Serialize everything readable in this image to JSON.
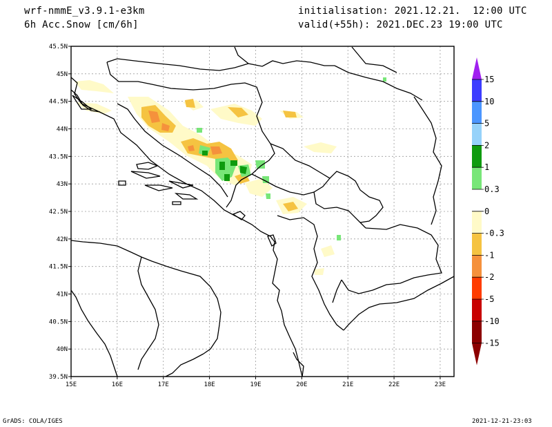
{
  "header": {
    "model": "wrf-nmmE_v3.9.1-e3km",
    "variable": "6h Acc.Snow [cm/6h]",
    "init": "initialisation: 2021.12.21.  12:00 UTC",
    "valid": "valid(+55h): 2021.DEC.23 19:00 UTC"
  },
  "footer": {
    "credit": "GrADS: COLA/IGES",
    "timestamp": "2021-12-21-23:03"
  },
  "axes": {
    "lon_labels": [
      "15E",
      "16E",
      "17E",
      "18E",
      "19E",
      "20E",
      "21E",
      "22E",
      "23E"
    ],
    "lat_labels": [
      "45.5N",
      "45N",
      "44.5N",
      "44N",
      "43.5N",
      "43N",
      "42.5N",
      "42N",
      "41.5N",
      "41N",
      "40.5N",
      "40N",
      "39.5N"
    ],
    "lon_range": [
      15,
      23.3
    ],
    "lat_range": [
      39.5,
      45.5
    ]
  },
  "colorbar": {
    "labels": [
      "15",
      "10",
      "5",
      "2",
      "1",
      "0.3",
      "0",
      "-0.3",
      "-1",
      "-2",
      "-5",
      "-10",
      "-15"
    ],
    "colors": [
      "#a020f0",
      "#3c3cff",
      "#4b96ff",
      "#96d2fa",
      "#0f9b0f",
      "#78e678",
      "#ffffff",
      "#fffac8",
      "#f5c341",
      "#f5913c",
      "#ff3c00",
      "#c80000",
      "#8c0000"
    ],
    "top_cap_color": "#a020f0",
    "bottom_cap_color": "#8c0000"
  },
  "snow_palette": {
    "light": "#fffac8",
    "moderate": "#f5c341",
    "heavy": "#f5913c",
    "green_light": "#78e678",
    "green_dark": "#0f9b0f"
  }
}
